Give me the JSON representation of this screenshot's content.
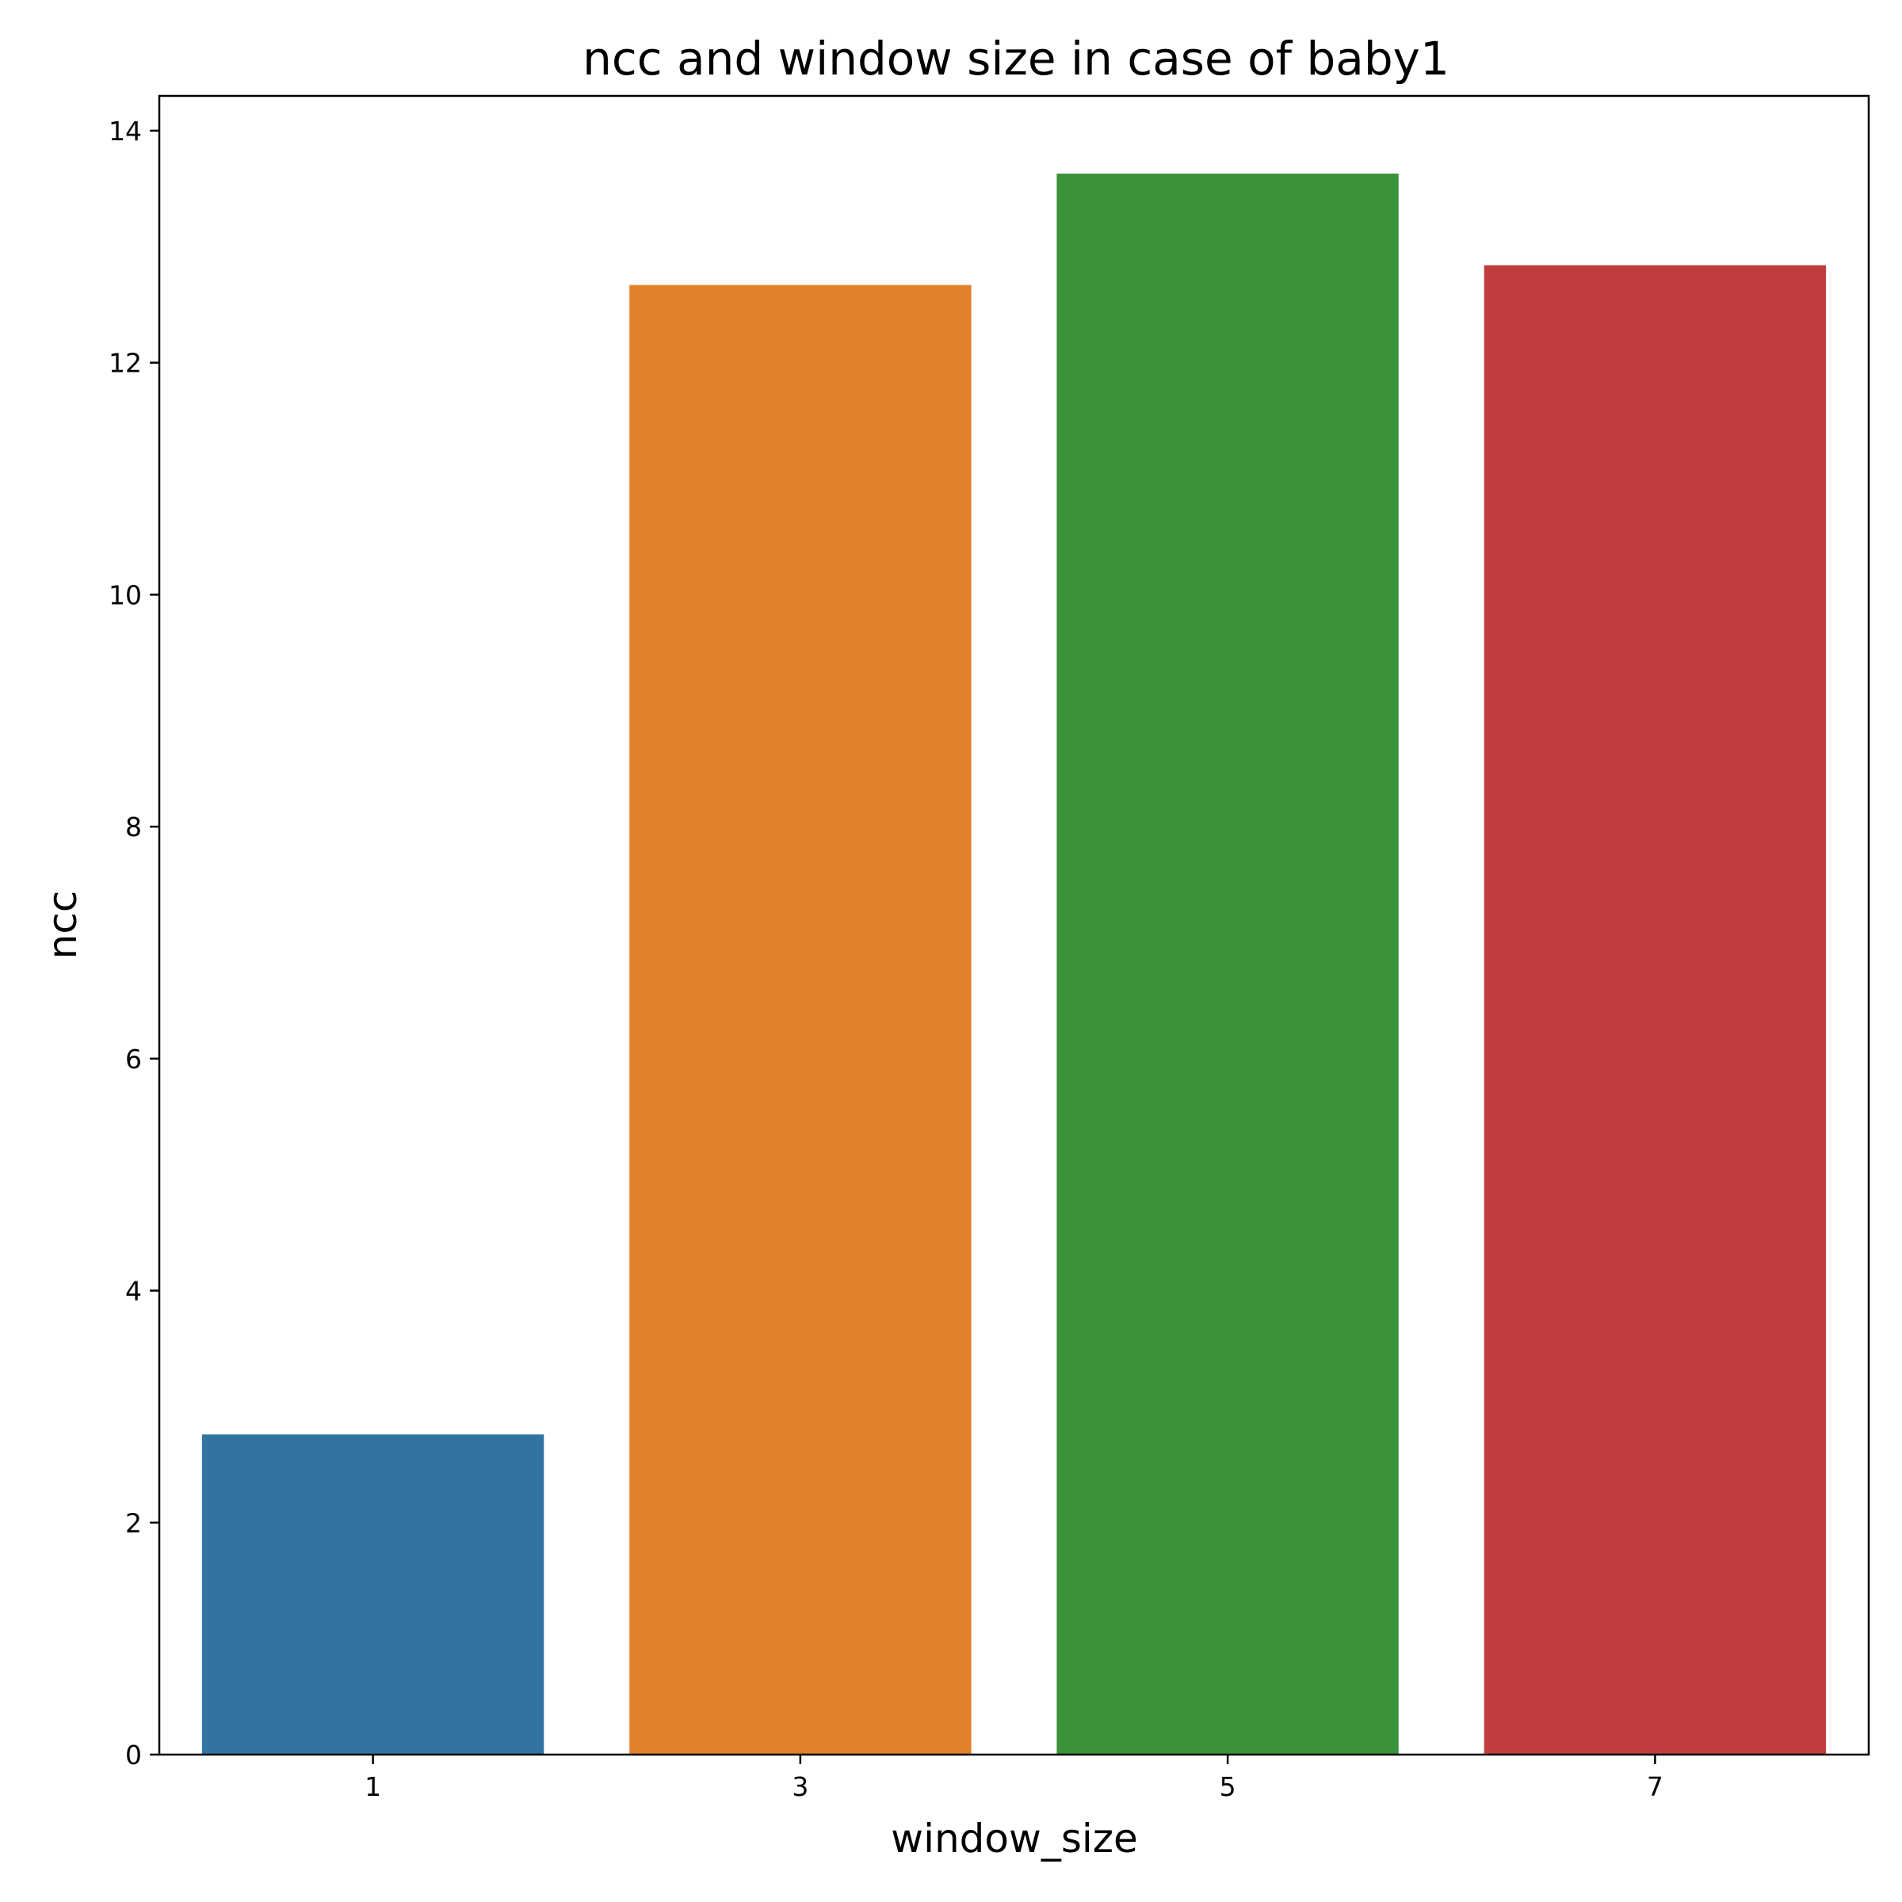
{
  "chart_data": {
    "type": "bar",
    "title": "ncc and window size in case of baby1",
    "xlabel": "window_size",
    "ylabel": "ncc",
    "categories": [
      "1",
      "3",
      "5",
      "7"
    ],
    "values": [
      2.76,
      12.67,
      13.63,
      12.84
    ],
    "colors": [
      "#3274a1",
      "#e1812c",
      "#3a923a",
      "#c03d3e"
    ],
    "ylim": [
      0,
      14.3
    ],
    "yticks": [
      0,
      2,
      4,
      6,
      8,
      10,
      12,
      14
    ],
    "grid": false,
    "legend": "none"
  }
}
